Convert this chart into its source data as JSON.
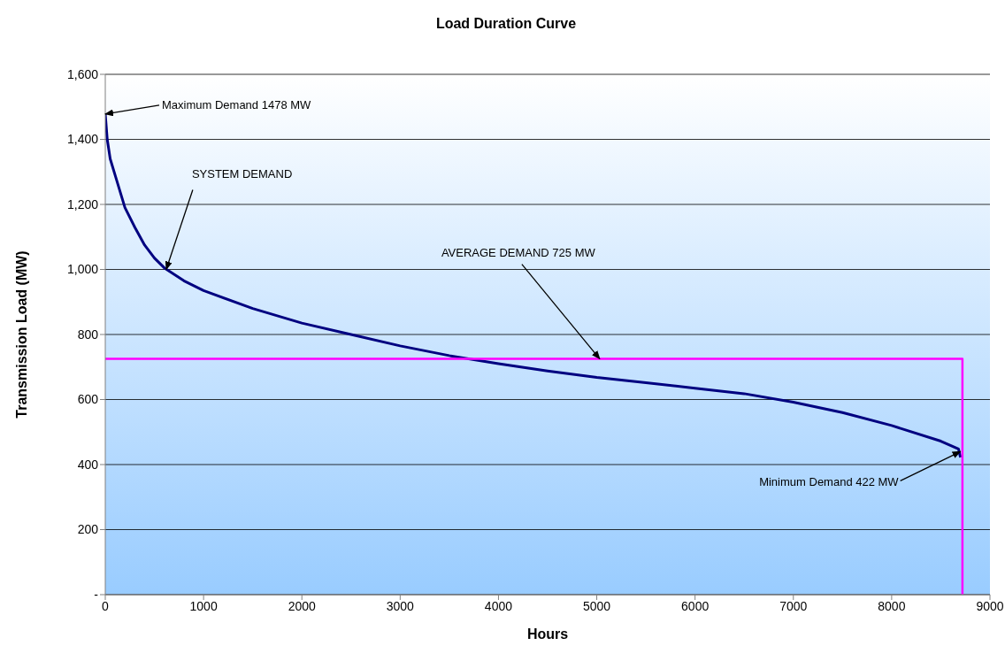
{
  "chart_data": {
    "type": "line",
    "title": "Load Duration Curve",
    "xlabel": "Hours",
    "ylabel": "Transmission Load (MW)",
    "xlim": [
      0,
      9000
    ],
    "xticks": [
      0,
      1000,
      2000,
      3000,
      4000,
      5000,
      6000,
      7000,
      8000,
      9000
    ],
    "ylim": [
      0,
      1600
    ],
    "yticks": [
      {
        "value": 0,
        "label": "-"
      },
      200,
      400,
      600,
      800,
      {
        "value": 1000,
        "label": "1,000"
      },
      {
        "value": 1200,
        "label": "1,200"
      },
      {
        "value": 1400,
        "label": "1,400"
      },
      {
        "value": 1600,
        "label": "1,600"
      }
    ],
    "grid": "y",
    "marker": "none",
    "line_style": "solid",
    "series": [
      {
        "color": "#000080",
        "x": [
          0,
          20,
          50,
          100,
          200,
          300,
          400,
          500,
          600,
          800,
          1000,
          1500,
          2000,
          2500,
          3000,
          3500,
          4000,
          4500,
          5000,
          5500,
          6000,
          6500,
          7000,
          7500,
          8000,
          8500,
          8680,
          8700
        ],
        "values": [
          1478,
          1400,
          1340,
          1290,
          1190,
          1130,
          1075,
          1035,
          1005,
          965,
          935,
          880,
          835,
          800,
          765,
          735,
          710,
          688,
          668,
          652,
          635,
          618,
          592,
          560,
          520,
          472,
          448,
          422
        ]
      },
      {
        "color": "#ff00ff",
        "x": [
          0,
          8720,
          8720
        ],
        "values": [
          725,
          725,
          0
        ]
      }
    ],
    "annotations": [
      {
        "text": "Maximum Demand 1478 MW",
        "x": 0,
        "y": 1478
      },
      {
        "text": "SYSTEM DEMAND",
        "x": 620,
        "y": 1000
      },
      {
        "text": "AVERAGE DEMAND 725 MW",
        "x": 5030,
        "y": 725
      },
      {
        "text": "Minimum Demand 422 MW",
        "x": 8700,
        "y": 440
      }
    ]
  }
}
